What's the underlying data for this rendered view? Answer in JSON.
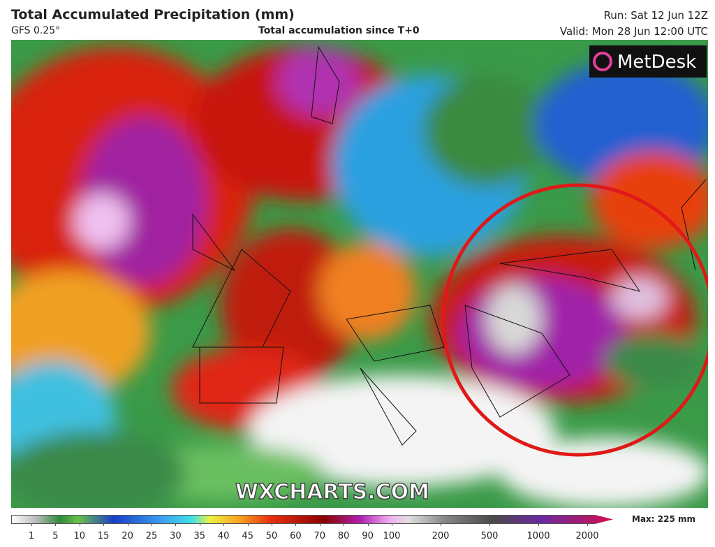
{
  "header": {
    "title": "Total Accumulated Precipitation (mm)",
    "model": "GFS 0.25°",
    "subtitle": "Total accumulation since T+0",
    "run": "Run: Sat 12 Jun 12Z",
    "valid": "Valid: Mon 28 Jun 12:00 UTC"
  },
  "map": {
    "logo": "MetDesk",
    "watermark": "WXCHARTS.COM"
  },
  "legend": {
    "ticks": [
      1,
      5,
      10,
      15,
      20,
      25,
      30,
      35,
      40,
      45,
      50,
      60,
      70,
      80,
      90,
      100,
      200,
      500,
      1000,
      2000
    ],
    "max": "Max: 225 mm"
  }
}
